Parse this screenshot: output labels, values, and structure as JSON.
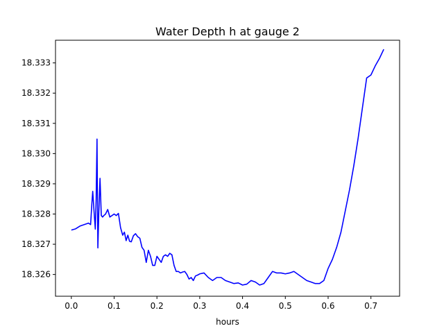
{
  "chart_data": {
    "type": "line",
    "title": "Water Depth h at gauge 2",
    "xlabel": "hours",
    "ylabel": "",
    "xlim": [
      -0.037,
      0.767
    ],
    "ylim": [
      18.32528,
      18.33375
    ],
    "grid": false,
    "legend": "none",
    "x_ticks": [
      0.0,
      0.1,
      0.2,
      0.3,
      0.4,
      0.5,
      0.6,
      0.7
    ],
    "x_tick_labels": [
      "0.0",
      "0.1",
      "0.2",
      "0.3",
      "0.4",
      "0.5",
      "0.6",
      "0.7"
    ],
    "y_ticks": [
      18.326,
      18.327,
      18.328,
      18.329,
      18.33,
      18.331,
      18.332,
      18.333
    ],
    "y_tick_labels": [
      "18.326",
      "18.327",
      "18.328",
      "18.329",
      "18.330",
      "18.331",
      "18.332",
      "18.333"
    ],
    "series": [
      {
        "color": "#0000ff",
        "x": [
          0.0,
          0.01,
          0.02,
          0.03,
          0.04,
          0.045,
          0.048,
          0.05,
          0.053,
          0.056,
          0.058,
          0.06,
          0.062,
          0.064,
          0.067,
          0.07,
          0.073,
          0.076,
          0.08,
          0.085,
          0.09,
          0.095,
          0.1,
          0.105,
          0.11,
          0.115,
          0.12,
          0.124,
          0.128,
          0.132,
          0.136,
          0.14,
          0.145,
          0.15,
          0.155,
          0.16,
          0.165,
          0.17,
          0.175,
          0.18,
          0.185,
          0.19,
          0.195,
          0.2,
          0.205,
          0.21,
          0.215,
          0.22,
          0.225,
          0.23,
          0.235,
          0.24,
          0.245,
          0.25,
          0.255,
          0.26,
          0.265,
          0.27,
          0.275,
          0.28,
          0.285,
          0.29,
          0.295,
          0.3,
          0.31,
          0.32,
          0.33,
          0.34,
          0.35,
          0.36,
          0.37,
          0.38,
          0.39,
          0.4,
          0.41,
          0.42,
          0.43,
          0.44,
          0.45,
          0.46,
          0.47,
          0.48,
          0.49,
          0.5,
          0.51,
          0.52,
          0.53,
          0.54,
          0.55,
          0.56,
          0.57,
          0.58,
          0.59,
          0.6,
          0.61,
          0.62,
          0.63,
          0.64,
          0.65,
          0.66,
          0.67,
          0.68,
          0.69,
          0.7,
          0.71,
          0.72,
          0.73
        ],
        "y": [
          18.32747,
          18.32751,
          18.3276,
          18.32765,
          18.3277,
          18.32765,
          18.32835,
          18.32875,
          18.3281,
          18.3275,
          18.3285,
          18.33048,
          18.32688,
          18.32795,
          18.32918,
          18.32795,
          18.3279,
          18.32795,
          18.328,
          18.32815,
          18.3279,
          18.32795,
          18.328,
          18.32795,
          18.32802,
          18.32755,
          18.3273,
          18.3274,
          18.32712,
          18.3273,
          18.3271,
          18.32708,
          18.32728,
          18.32735,
          18.32725,
          18.3272,
          18.3269,
          18.3268,
          18.3264,
          18.3268,
          18.3266,
          18.3263,
          18.3263,
          18.3266,
          18.3265,
          18.3264,
          18.3266,
          18.32665,
          18.3266,
          18.3267,
          18.32665,
          18.3263,
          18.3261,
          18.3261,
          18.32605,
          18.32608,
          18.3261,
          18.326,
          18.32585,
          18.3259,
          18.3258,
          18.32595,
          18.32598,
          18.32602,
          18.32605,
          18.3259,
          18.3258,
          18.3259,
          18.3259,
          18.3258,
          18.32575,
          18.3257,
          18.32572,
          18.32565,
          18.32568,
          18.3258,
          18.32575,
          18.32565,
          18.3257,
          18.3259,
          18.3261,
          18.32605,
          18.32605,
          18.32602,
          18.32605,
          18.3261,
          18.326,
          18.3259,
          18.3258,
          18.32575,
          18.3257,
          18.3257,
          18.3258,
          18.3262,
          18.3265,
          18.3269,
          18.3274,
          18.3281,
          18.3288,
          18.3296,
          18.3305,
          18.3315,
          18.3325,
          18.3326,
          18.3329,
          18.33315,
          18.33345
        ]
      }
    ]
  }
}
